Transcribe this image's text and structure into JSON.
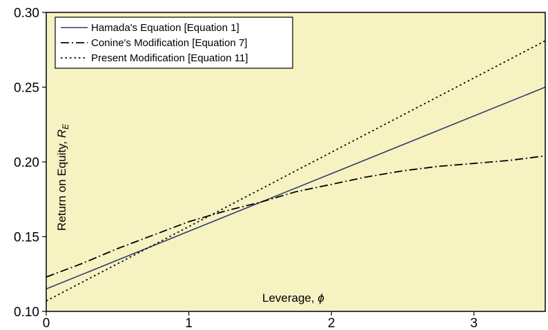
{
  "chart_data": {
    "type": "line",
    "xlabel": "Leverage, ",
    "xlabel_symbol": "ϕ",
    "ylabel": "Return on Equity, ",
    "ylabel_symbol": "R",
    "ylabel_subscript": "E",
    "xlim": [
      0,
      3.5
    ],
    "ylim": [
      0.1,
      0.3
    ],
    "x_ticks": [
      0,
      1,
      2,
      3
    ],
    "x_tick_labels": [
      "0",
      "1",
      "2",
      "3"
    ],
    "y_ticks": [
      0.1,
      0.15,
      0.2,
      0.25,
      0.3
    ],
    "y_tick_labels": [
      "0.10",
      "0.15",
      "0.20",
      "0.25",
      "0.30"
    ],
    "grid": false,
    "background": "#f6f2c2",
    "legend_position": "top-left",
    "series": [
      {
        "name": "Hamada's Equation [Equation 1]",
        "style": "solid",
        "color": "#2f3a6b",
        "x": [
          0,
          3.5
        ],
        "y": [
          0.115,
          0.25
        ]
      },
      {
        "name": "Conine's Modification [Equation 7]",
        "style": "dashdot",
        "color": "#000000",
        "x": [
          0,
          0.25,
          0.5,
          0.75,
          1.0,
          1.25,
          1.5,
          1.75,
          2.0,
          2.25,
          2.5,
          2.75,
          3.0,
          3.25,
          3.5
        ],
        "y": [
          0.123,
          0.132,
          0.142,
          0.151,
          0.16,
          0.167,
          0.173,
          0.18,
          0.185,
          0.19,
          0.194,
          0.197,
          0.199,
          0.201,
          0.204
        ]
      },
      {
        "name": "Present Modification [Equation 11]",
        "style": "dotted",
        "color": "#000000",
        "x": [
          0,
          3.5
        ],
        "y": [
          0.107,
          0.281
        ]
      }
    ]
  }
}
